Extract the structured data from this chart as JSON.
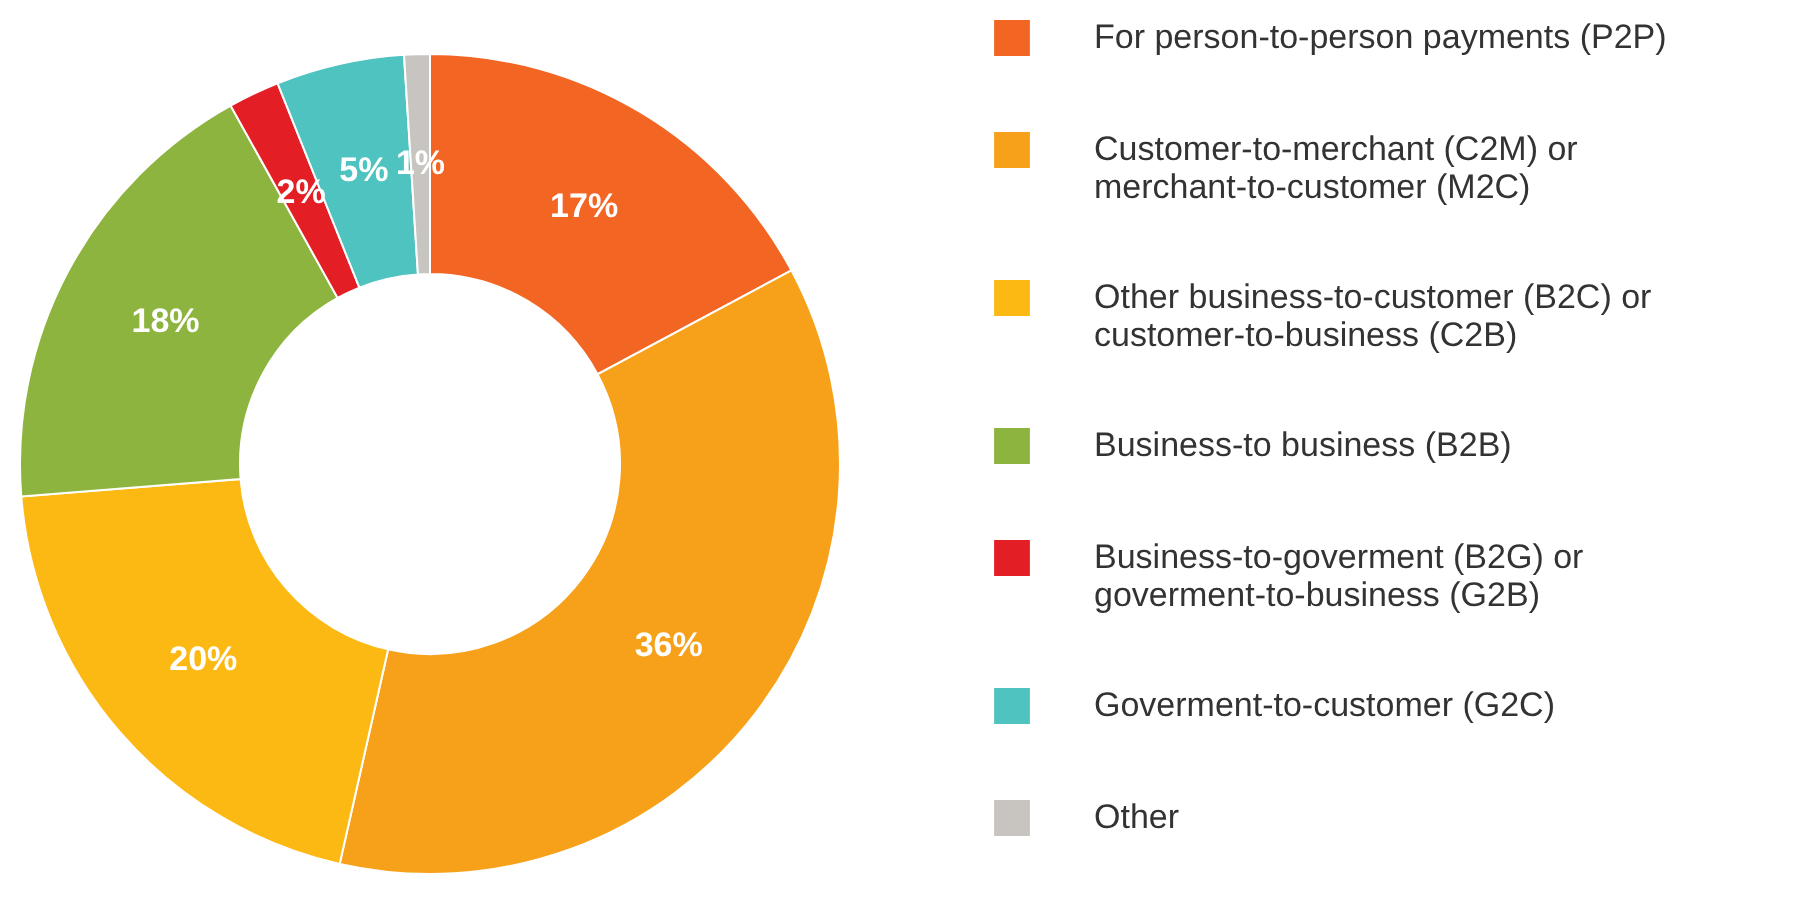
{
  "chart_data": {
    "type": "donut",
    "categories": [
      "For person-to-person payments (P2P)",
      "Customer-to-merchant (C2M) or merchant-to-customer (M2C)",
      "Other business-to-customer (B2C) or customer-to-business (C2B)",
      "Business-to business (B2B)",
      "Business-to-goverment (B2G) or goverment-to-business (G2B)",
      "Goverment-to-customer (G2C)",
      "Other"
    ],
    "values": [
      17,
      36,
      20,
      18,
      2,
      5,
      1
    ],
    "value_labels": [
      "17%",
      "36%",
      "20%",
      "18%",
      "2%",
      "5%",
      "1%"
    ],
    "colors": [
      "#f26522",
      "#f7a11a",
      "#fdb913",
      "#8cb43f",
      "#e31e24",
      "#4fc3c0",
      "#c8c4bf"
    ],
    "legend": "right"
  }
}
